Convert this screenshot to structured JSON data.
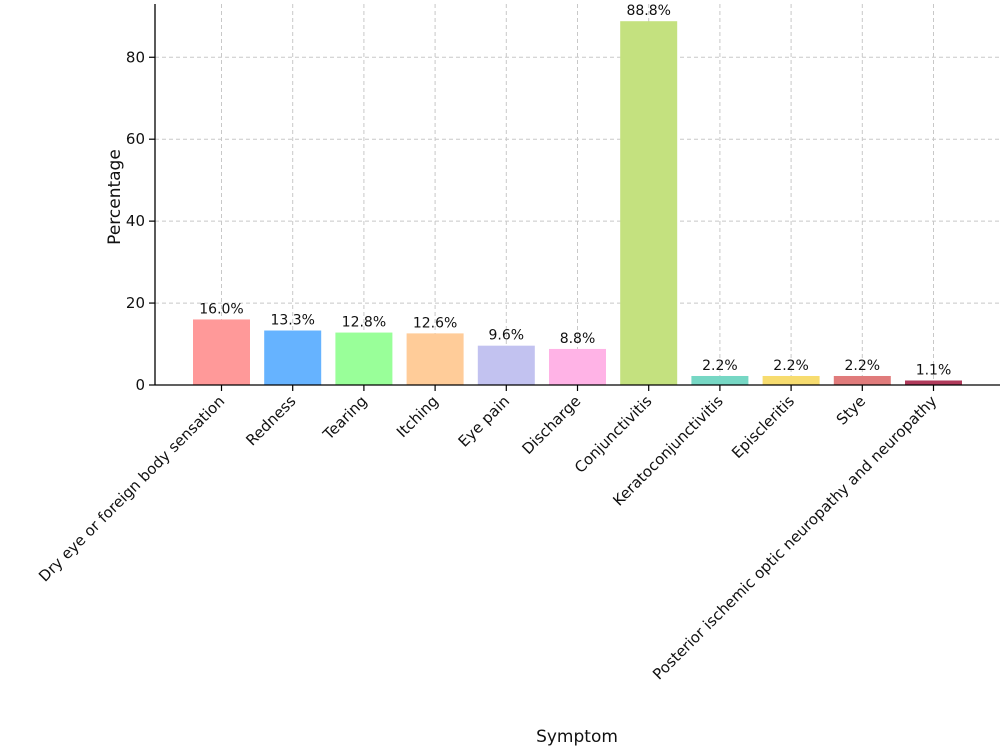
{
  "chart_data": {
    "type": "bar",
    "title": "",
    "xlabel": "Symptom",
    "ylabel": "Percentage",
    "ylim": [
      0,
      93
    ],
    "yticks": [
      0,
      20,
      40,
      60,
      80
    ],
    "grid": true,
    "categories": [
      "Dry eye or foreign body sensation",
      "Redness",
      "Tearing",
      "Itching",
      "Eye pain",
      "Discharge",
      "Conjunctivitis",
      "Keratoconjunctivitis",
      "Episcleritis",
      "Stye",
      "Posterior ischemic optic neuropathy and neuropathy"
    ],
    "values": [
      16.0,
      13.3,
      12.8,
      12.6,
      9.6,
      8.8,
      88.8,
      2.2,
      2.2,
      2.2,
      1.1
    ],
    "value_labels": [
      "16.0%",
      "13.3%",
      "12.8%",
      "12.6%",
      "9.6%",
      "8.8%",
      "88.8%",
      "2.2%",
      "2.2%",
      "2.2%",
      "1.1%"
    ],
    "colors": [
      "#ff9999",
      "#66b3ff",
      "#99ff99",
      "#ffcc99",
      "#c2c2f0",
      "#ffb3e6",
      "#c4e17f",
      "#76d7c4",
      "#f7dc6f",
      "#e07b7b",
      "#b03a5b"
    ]
  }
}
